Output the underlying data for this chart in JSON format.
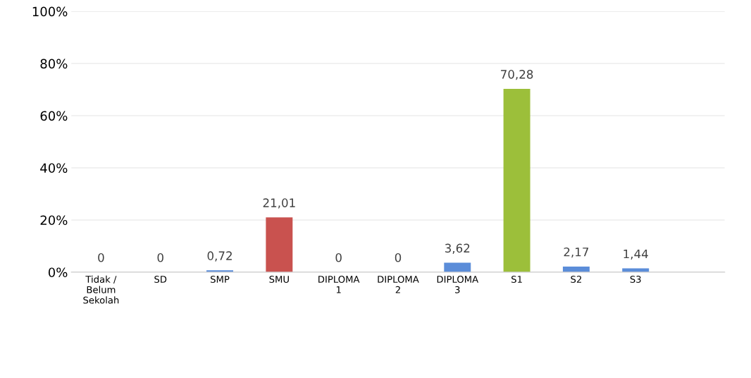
{
  "chart_data": {
    "type": "bar",
    "categories": [
      "Tidak /\nBelum\nSekolah",
      "SD",
      "SMP",
      "SMU",
      "DIPLOMA\n1",
      "DIPLOMA\n2",
      "DIPLOMA\n3",
      "S1",
      "S2",
      "S3",
      null
    ],
    "values": [
      0,
      0,
      0.72,
      21.01,
      0,
      0,
      3.62,
      70.28,
      2.17,
      1.44,
      null
    ],
    "colors": [
      "#5b8dd9",
      "#5b8dd9",
      "#5b8dd9",
      "#c9524f",
      "#5b8dd9",
      "#5b8dd9",
      "#5b8dd9",
      "#9cbf3a",
      "#5b8dd9",
      "#5b8dd9",
      "#5b8dd9"
    ],
    "value_labels": [
      "0",
      "0",
      "0,72",
      "21,01",
      "0",
      "0",
      "3,62",
      "70,28",
      "2,17",
      "1,44",
      null
    ],
    "ylim": [
      0,
      100
    ],
    "yticks": [
      {
        "value": 0,
        "label": "0%"
      },
      {
        "value": 20,
        "label": "20%"
      },
      {
        "value": 40,
        "label": "40%"
      },
      {
        "value": 60,
        "label": "60%"
      },
      {
        "value": 80,
        "label": "80%"
      },
      {
        "value": 100,
        "label": "100%"
      }
    ],
    "grid": "y",
    "legend": false
  }
}
